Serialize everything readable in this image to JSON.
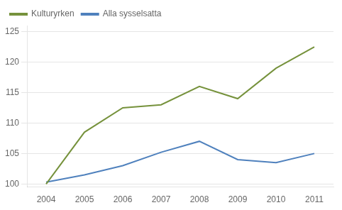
{
  "chart_data": {
    "type": "line",
    "x": [
      2004,
      2005,
      2006,
      2007,
      2008,
      2009,
      2010,
      2011
    ],
    "series": [
      {
        "name": "Kulturyrken",
        "color": "#76923C",
        "values": [
          100,
          108.5,
          112.5,
          113.0,
          116.0,
          114.0,
          119.0,
          122.5
        ]
      },
      {
        "name": "Alla sysselsatta",
        "color": "#4F81BD",
        "values": [
          100.3,
          101.5,
          103.0,
          105.2,
          107.0,
          104.0,
          103.5,
          105.0
        ]
      }
    ],
    "xlim": [
      2003.5,
      2011.5
    ],
    "xticks": [
      2004,
      2005,
      2006,
      2007,
      2008,
      2009,
      2010,
      2011
    ],
    "ylim": [
      99.5,
      126
    ],
    "yticks": [
      100,
      105,
      110,
      115,
      120,
      125
    ],
    "grid": true,
    "legend": "upper left"
  }
}
